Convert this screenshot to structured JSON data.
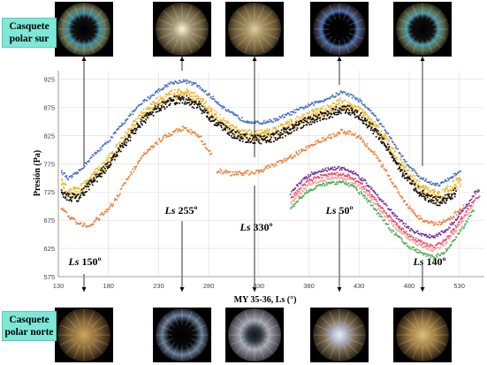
{
  "labels": {
    "south_cap": "Casquete polar sur",
    "north_cap": "Casquete polar norte"
  },
  "annotations": [
    "Ls 150º",
    "Ls 255º",
    "Ls 330º",
    "Ls 50º",
    "Ls 140º"
  ],
  "annotation_ls": [
    150,
    255,
    330,
    50,
    140
  ],
  "photo_x_values": [
    150,
    255,
    330,
    410,
    500
  ],
  "colors": {
    "blue": "#4472c4",
    "orange": "#ed7d31",
    "gold": "#f0b428",
    "black": "#111111",
    "purple": "#7030a0",
    "red": "#e8485a",
    "pink": "#f4a0a8",
    "green": "#4caf50",
    "label_bg": "#7ee8d6"
  },
  "chart_data": {
    "type": "scatter",
    "title": "",
    "xlabel": "MY 35-36, Ls (°)",
    "ylabel": "Presión (Pa)",
    "xlim": [
      130,
      555
    ],
    "ylim": [
      575,
      940
    ],
    "x_ticks": [
      130,
      180,
      230,
      280,
      330,
      380,
      430,
      480,
      530
    ],
    "y_ticks": [
      575,
      625,
      675,
      725,
      775,
      825,
      875,
      925
    ],
    "grid": true,
    "series": [
      {
        "color_key": "blue",
        "segments": [
          [
            [
              133,
              762
            ],
            [
              140,
              748
            ],
            [
              150,
              760
            ],
            [
              165,
              790
            ],
            [
              180,
              815
            ],
            [
              200,
              858
            ],
            [
              215,
              885
            ],
            [
              230,
              905
            ],
            [
              242,
              918
            ],
            [
              255,
              922
            ],
            [
              268,
              915
            ],
            [
              285,
              890
            ],
            [
              300,
              867
            ],
            [
              315,
              852
            ],
            [
              330,
              847
            ],
            [
              345,
              852
            ],
            [
              360,
              863
            ],
            [
              375,
              875
            ],
            [
              390,
              885
            ],
            [
              405,
              895
            ],
            [
              412,
              902
            ],
            [
              420,
              898
            ],
            [
              430,
              888
            ],
            [
              445,
              862
            ],
            [
              460,
              825
            ],
            [
              475,
              782
            ],
            [
              490,
              752
            ],
            [
              500,
              742
            ],
            [
              510,
              738
            ],
            [
              520,
              748
            ],
            [
              527,
              757
            ],
            [
              532,
              762
            ]
          ]
        ]
      },
      {
        "color_key": "gold",
        "segments": [
          [
            [
              133,
              740
            ],
            [
              140,
              722
            ],
            [
              150,
              725
            ],
            [
              165,
              752
            ],
            [
              180,
              780
            ],
            [
              200,
              830
            ],
            [
              215,
              862
            ],
            [
              230,
              885
            ],
            [
              245,
              897
            ],
            [
              255,
              900
            ],
            [
              270,
              888
            ],
            [
              285,
              862
            ],
            [
              300,
              840
            ],
            [
              315,
              828
            ],
            [
              330,
              825
            ],
            [
              345,
              830
            ],
            [
              360,
              842
            ],
            [
              375,
              855
            ],
            [
              390,
              865
            ],
            [
              405,
              875
            ],
            [
              412,
              882
            ],
            [
              420,
              878
            ],
            [
              430,
              868
            ],
            [
              445,
              842
            ],
            [
              460,
              808
            ],
            [
              475,
              765
            ],
            [
              490,
              735
            ],
            [
              500,
              722
            ],
            [
              510,
              718
            ],
            [
              520,
              728
            ],
            [
              527,
              740
            ],
            [
              532,
              745
            ]
          ]
        ]
      },
      {
        "color_key": "black",
        "segments": [
          [
            [
              133,
              728
            ],
            [
              140,
              715
            ],
            [
              150,
              715
            ],
            [
              165,
              745
            ],
            [
              180,
              772
            ],
            [
              200,
              820
            ],
            [
              215,
              852
            ],
            [
              230,
              875
            ],
            [
              245,
              887
            ],
            [
              255,
              890
            ],
            [
              270,
              878
            ],
            [
              285,
              852
            ],
            [
              300,
              832
            ],
            [
              315,
              820
            ],
            [
              330,
              818
            ],
            [
              345,
              822
            ],
            [
              360,
              835
            ],
            [
              375,
              848
            ],
            [
              390,
              858
            ],
            [
              405,
              866
            ],
            [
              412,
              872
            ],
            [
              420,
              870
            ],
            [
              430,
              860
            ],
            [
              445,
              835
            ],
            [
              460,
              800
            ],
            [
              475,
              755
            ],
            [
              490,
              725
            ],
            [
              500,
              712
            ],
            [
              510,
              708
            ],
            [
              520,
              715
            ],
            [
              527,
              725
            ]
          ]
        ]
      },
      {
        "color_key": "orange",
        "segments": [
          [
            [
              133,
              697
            ],
            [
              142,
              680
            ],
            [
              150,
              668
            ],
            [
              160,
              665
            ],
            [
              170,
              678
            ],
            [
              185,
              705
            ],
            [
              200,
              752
            ],
            [
              215,
              790
            ],
            [
              230,
              815
            ],
            [
              245,
              832
            ],
            [
              255,
              838
            ],
            [
              270,
              825
            ],
            [
              283,
              792
            ]
          ],
          [
            [
              288,
              763
            ],
            [
              300,
              758
            ],
            [
              315,
              758
            ],
            [
              330,
              762
            ],
            [
              345,
              772
            ],
            [
              360,
              785
            ],
            [
              375,
              800
            ],
            [
              390,
              815
            ],
            [
              405,
              825
            ],
            [
              412,
              832
            ],
            [
              420,
              830
            ],
            [
              430,
              822
            ],
            [
              445,
              795
            ],
            [
              460,
              752
            ],
            [
              475,
              708
            ],
            [
              490,
              680
            ],
            [
              500,
              670
            ],
            [
              510,
              668
            ],
            [
              520,
              675
            ],
            [
              527,
              688
            ],
            [
              535,
              700
            ]
          ]
        ]
      },
      {
        "color_key": "purple",
        "segments": [
          [
            [
              362,
              722
            ],
            [
              370,
              740
            ],
            [
              380,
              755
            ],
            [
              390,
              762
            ],
            [
              400,
              766
            ],
            [
              412,
              767
            ],
            [
              422,
              762
            ],
            [
              435,
              745
            ],
            [
              450,
              715
            ],
            [
              465,
              685
            ],
            [
              480,
              660
            ],
            [
              495,
              648
            ],
            [
              505,
              645
            ],
            [
              515,
              655
            ],
            [
              525,
              672
            ],
            [
              535,
              695
            ],
            [
              545,
              722
            ],
            [
              550,
              728
            ]
          ]
        ]
      },
      {
        "color_key": "red",
        "segments": [
          [
            [
              362,
              712
            ],
            [
              370,
              730
            ],
            [
              380,
              745
            ],
            [
              390,
              752
            ],
            [
              400,
              756
            ],
            [
              412,
              757
            ],
            [
              422,
              752
            ],
            [
              435,
              735
            ],
            [
              450,
              702
            ],
            [
              465,
              672
            ],
            [
              480,
              648
            ],
            [
              495,
              633
            ],
            [
              505,
              628
            ],
            [
              515,
              638
            ],
            [
              525,
              660
            ],
            [
              535,
              685
            ],
            [
              545,
              712
            ],
            [
              550,
              718
            ]
          ]
        ]
      },
      {
        "color_key": "pink",
        "segments": [
          [
            [
              362,
              705
            ],
            [
              370,
              722
            ],
            [
              380,
              738
            ],
            [
              390,
              745
            ],
            [
              400,
              749
            ],
            [
              412,
              750
            ],
            [
              422,
              745
            ],
            [
              435,
              728
            ],
            [
              450,
              696
            ],
            [
              465,
              665
            ],
            [
              480,
              641
            ],
            [
              495,
              627
            ],
            [
              505,
              622
            ],
            [
              515,
              632
            ],
            [
              525,
              653
            ],
            [
              535,
              678
            ],
            [
              545,
              705
            ]
          ]
        ]
      },
      {
        "color_key": "green",
        "segments": [
          [
            [
              362,
              695
            ],
            [
              370,
              712
            ],
            [
              380,
              728
            ],
            [
              390,
              736
            ],
            [
              400,
              740
            ],
            [
              412,
              742
            ],
            [
              422,
              737
            ],
            [
              435,
              718
            ],
            [
              450,
              685
            ],
            [
              465,
              652
            ],
            [
              480,
              628
            ],
            [
              495,
              614
            ],
            [
              505,
              609
            ],
            [
              515,
              618
            ],
            [
              525,
              640
            ],
            [
              535,
              665
            ],
            [
              545,
              695
            ]
          ]
        ]
      }
    ]
  }
}
